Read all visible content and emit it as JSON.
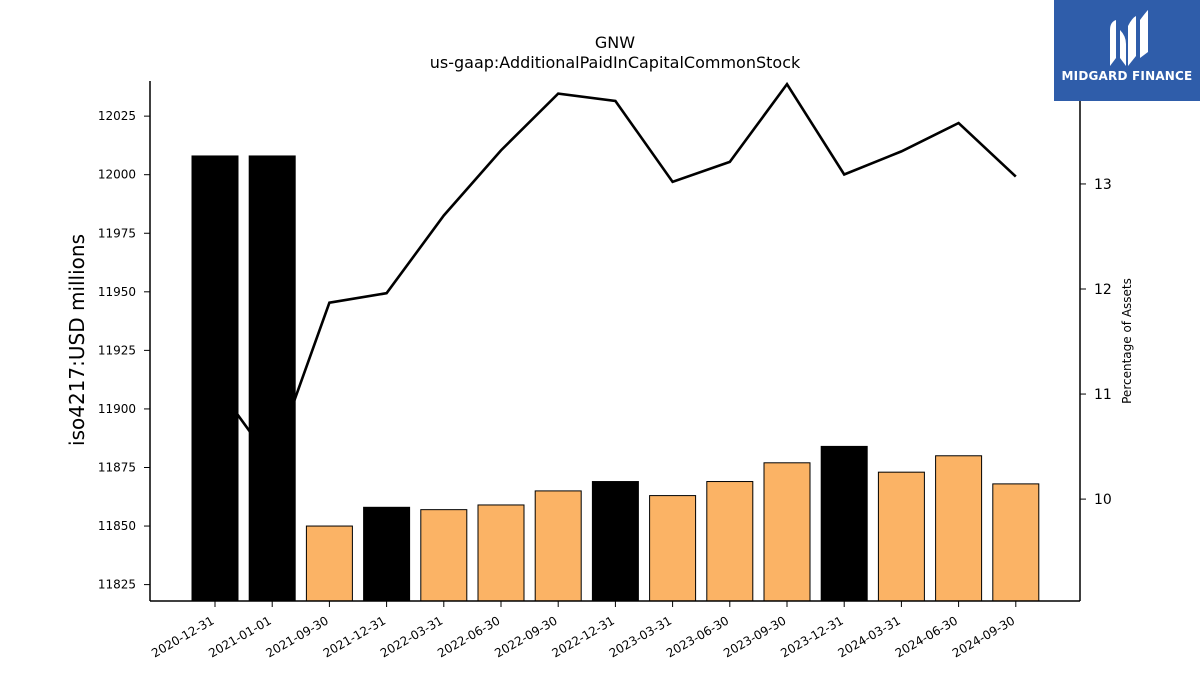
{
  "chart_data": {
    "type": "bar",
    "title": "GNW",
    "subtitle": "us-gaap:AdditionalPaidInCapitalCommonStock",
    "ylabel": "iso4217:USD  millions",
    "y2label": "Percentage of Assets",
    "ylim": [
      11818,
      12040
    ],
    "y2lim": [
      9.03,
      13.98
    ],
    "yticks": [
      11825,
      11850,
      11875,
      11900,
      11925,
      11950,
      11975,
      12000,
      12025
    ],
    "y2ticks": [
      10,
      11,
      12,
      13
    ],
    "categories": [
      "2020-12-31",
      "2021-01-01",
      "2021-09-30",
      "2021-12-31",
      "2022-03-31",
      "2022-06-30",
      "2022-09-30",
      "2022-12-31",
      "2023-03-31",
      "2023-06-30",
      "2023-09-30",
      "2023-12-31",
      "2024-03-31",
      "2024-06-30",
      "2024-09-30"
    ],
    "series": [
      {
        "kind": "bar",
        "values": [
          12008,
          12008,
          11850,
          11858,
          11857,
          11859,
          11865,
          11869,
          11863,
          11869,
          11877,
          11884,
          11873,
          11880,
          11868
        ],
        "colors": [
          "#000000",
          "#000000",
          "#fbb365",
          "#000000",
          "#fbb365",
          "#fbb365",
          "#fbb365",
          "#000000",
          "#fbb365",
          "#fbb365",
          "#fbb365",
          "#000000",
          "#fbb365",
          "#fbb365",
          "#fbb365"
        ]
      },
      {
        "kind": "line",
        "axis": "right",
        "color": "#000000",
        "values": [
          11.1,
          10.35,
          11.87,
          11.96,
          12.7,
          13.32,
          13.86,
          13.79,
          13.02,
          13.21,
          13.95,
          13.09,
          13.31,
          13.58,
          13.07
        ]
      }
    ],
    "grid": false
  },
  "logo": {
    "text": "MIDGARD FINANCE",
    "background": "#2f5daa"
  }
}
